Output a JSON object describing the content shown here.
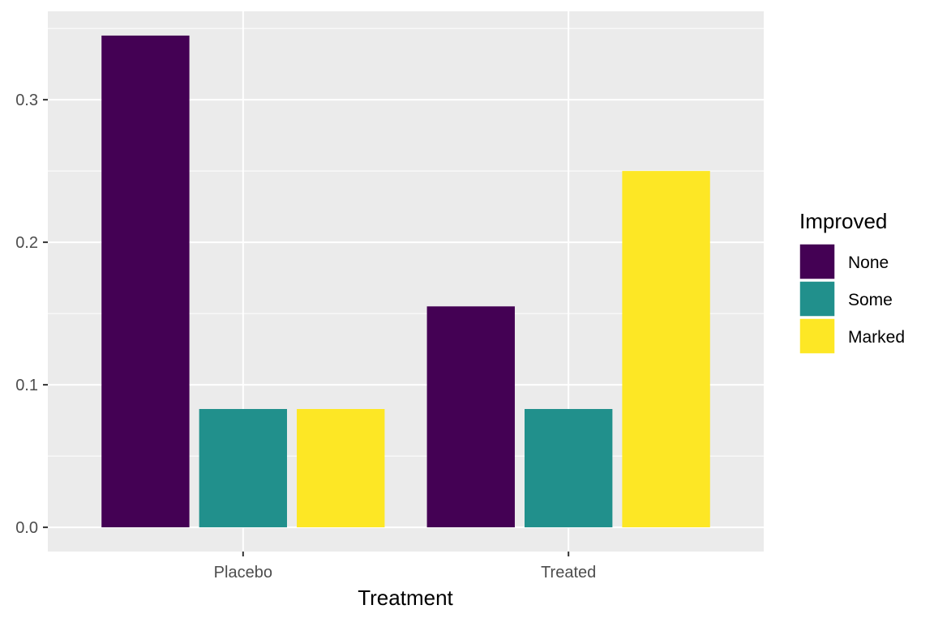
{
  "chart_data": {
    "type": "bar",
    "xlabel": "Treatment",
    "ylabel": "",
    "categories": [
      "Placebo",
      "Treated"
    ],
    "series": [
      {
        "name": "None",
        "color": "#440154",
        "values": [
          0.345,
          0.155
        ]
      },
      {
        "name": "Some",
        "color": "#21908C",
        "values": [
          0.083,
          0.083
        ]
      },
      {
        "name": "Marked",
        "color": "#FDE725",
        "values": [
          0.083,
          0.25
        ]
      }
    ],
    "ylim": [
      -0.017,
      0.362
    ],
    "yticks": [
      0.0,
      0.1,
      0.2,
      0.3
    ],
    "ytick_labels": [
      "0.0",
      "0.1",
      "0.2",
      "0.3"
    ],
    "grid": true,
    "legend": {
      "title": "Improved",
      "position": "right"
    },
    "panel_background": "#EBEBEB",
    "grid_color": "#FFFFFF"
  }
}
